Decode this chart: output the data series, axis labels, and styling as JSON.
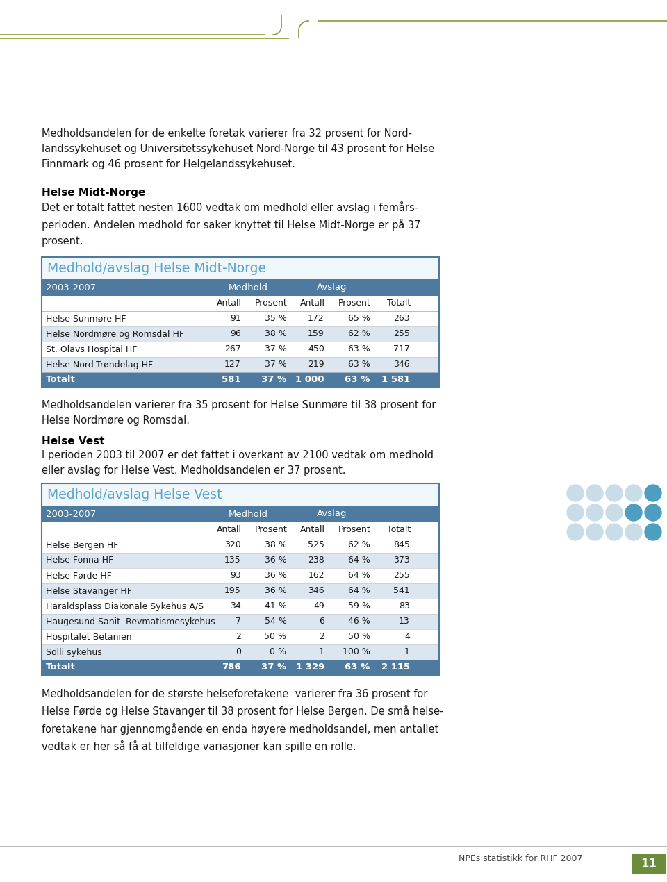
{
  "page_bg": "#ffffff",
  "tab_header_bg": "#4d7a9e",
  "tab_header_text": "#ffffff",
  "tab_title_color": "#5ba3c9",
  "tab_row_alt_bg": "#dce6f0",
  "tab_row_bg": "#ffffff",
  "tab_total_bg": "#4d7a9e",
  "tab_total_text": "#ffffff",
  "tab_border_color": "#4d7a9e",
  "body_text_color": "#1a1a1a",
  "bold_heading_color": "#000000",
  "olive_color": "#8a9a3a",
  "circle_light": "#c8dde8",
  "circle_dark": "#4d9ec0",
  "intro_text": "Medholdsandelen for de enkelte foretak varierer fra 32 prosent for Nord-\nlandssykehuset og Universitetssykehuset Nord-Norge til 43 prosent for Helse\nFinnmark og 46 prosent for Helgelandssykehuset.",
  "section1_heading": "Helse Midt-Norge",
  "section1_body": "Det er totalt fattet nesten 1600 vedtak om medhold eller avslag i femårs-\nperioden. Andelen medhold for saker knyttet til Helse Midt-Norge er på 37\nprosent.",
  "table1_title": "Medhold/avslag Helse Midt-Norge",
  "table1_header_row": [
    "2003-2007",
    "Medhold",
    "",
    "Avslag",
    "",
    ""
  ],
  "table1_subheader": [
    "",
    "Antall",
    "Prosent",
    "Antall",
    "Prosent",
    "Totalt"
  ],
  "table1_rows": [
    [
      "Helse Sunmøre HF",
      "91",
      "35 %",
      "172",
      "65 %",
      "263"
    ],
    [
      "Helse Nordmøre og Romsdal HF",
      "96",
      "38 %",
      "159",
      "62 %",
      "255"
    ],
    [
      "St. Olavs Hospital HF",
      "267",
      "37 %",
      "450",
      "63 %",
      "717"
    ],
    [
      "Helse Nord-Trøndelag HF",
      "127",
      "37 %",
      "219",
      "63 %",
      "346"
    ]
  ],
  "table1_total": [
    "Totalt",
    "581",
    "37 %",
    "1 000",
    "63 %",
    "1 581"
  ],
  "between_text1": "Medholdsandelen varierer fra 35 prosent for Helse Sunmøre til 38 prosent for\nHelse Nordmøre og Romsdal.",
  "section2_heading": "Helse Vest",
  "section2_body": "I perioden 2003 til 2007 er det fattet i overkant av 2100 vedtak om medhold\neller avslag for Helse Vest. Medholdsandelen er 37 prosent.",
  "table2_title": "Medhold/avslag Helse Vest",
  "table2_header_row": [
    "2003-2007",
    "Medhold",
    "",
    "Avslag",
    "",
    ""
  ],
  "table2_subheader": [
    "",
    "Antall",
    "Prosent",
    "Antall",
    "Prosent",
    "Totalt"
  ],
  "table2_rows": [
    [
      "Helse Bergen HF",
      "320",
      "38 %",
      "525",
      "62 %",
      "845"
    ],
    [
      "Helse Fonna HF",
      "135",
      "36 %",
      "238",
      "64 %",
      "373"
    ],
    [
      "Helse Førde HF",
      "93",
      "36 %",
      "162",
      "64 %",
      "255"
    ],
    [
      "Helse Stavanger HF",
      "195",
      "36 %",
      "346",
      "64 %",
      "541"
    ],
    [
      "Haraldsplass Diakonale Sykehus A/S",
      "34",
      "41 %",
      "49",
      "59 %",
      "83"
    ],
    [
      "Haugesund Sanit. Revmatismesykehus",
      "7",
      "54 %",
      "6",
      "46 %",
      "13"
    ],
    [
      "Hospitalet Betanien",
      "2",
      "50 %",
      "2",
      "50 %",
      "4"
    ],
    [
      "Solli sykehus",
      "0",
      "0 %",
      "1",
      "100 %",
      "1"
    ]
  ],
  "table2_total": [
    "Totalt",
    "786",
    "37 %",
    "1 329",
    "63 %",
    "2 115"
  ],
  "outro_text": "Medholdsandelen for de største helseforetakene  varierer fra 36 prosent for\nHelse Førde og Helse Stavanger til 38 prosent for Helse Bergen. De små helse-\nforetakene har gjennomgående en enda høyere medholdsandel, men antallet\nvedtak er her så få at tilfeldige variasjoner kan spille en rolle.",
  "footer_text": "NPEs statistikk for RHF 2007",
  "page_number": "11"
}
